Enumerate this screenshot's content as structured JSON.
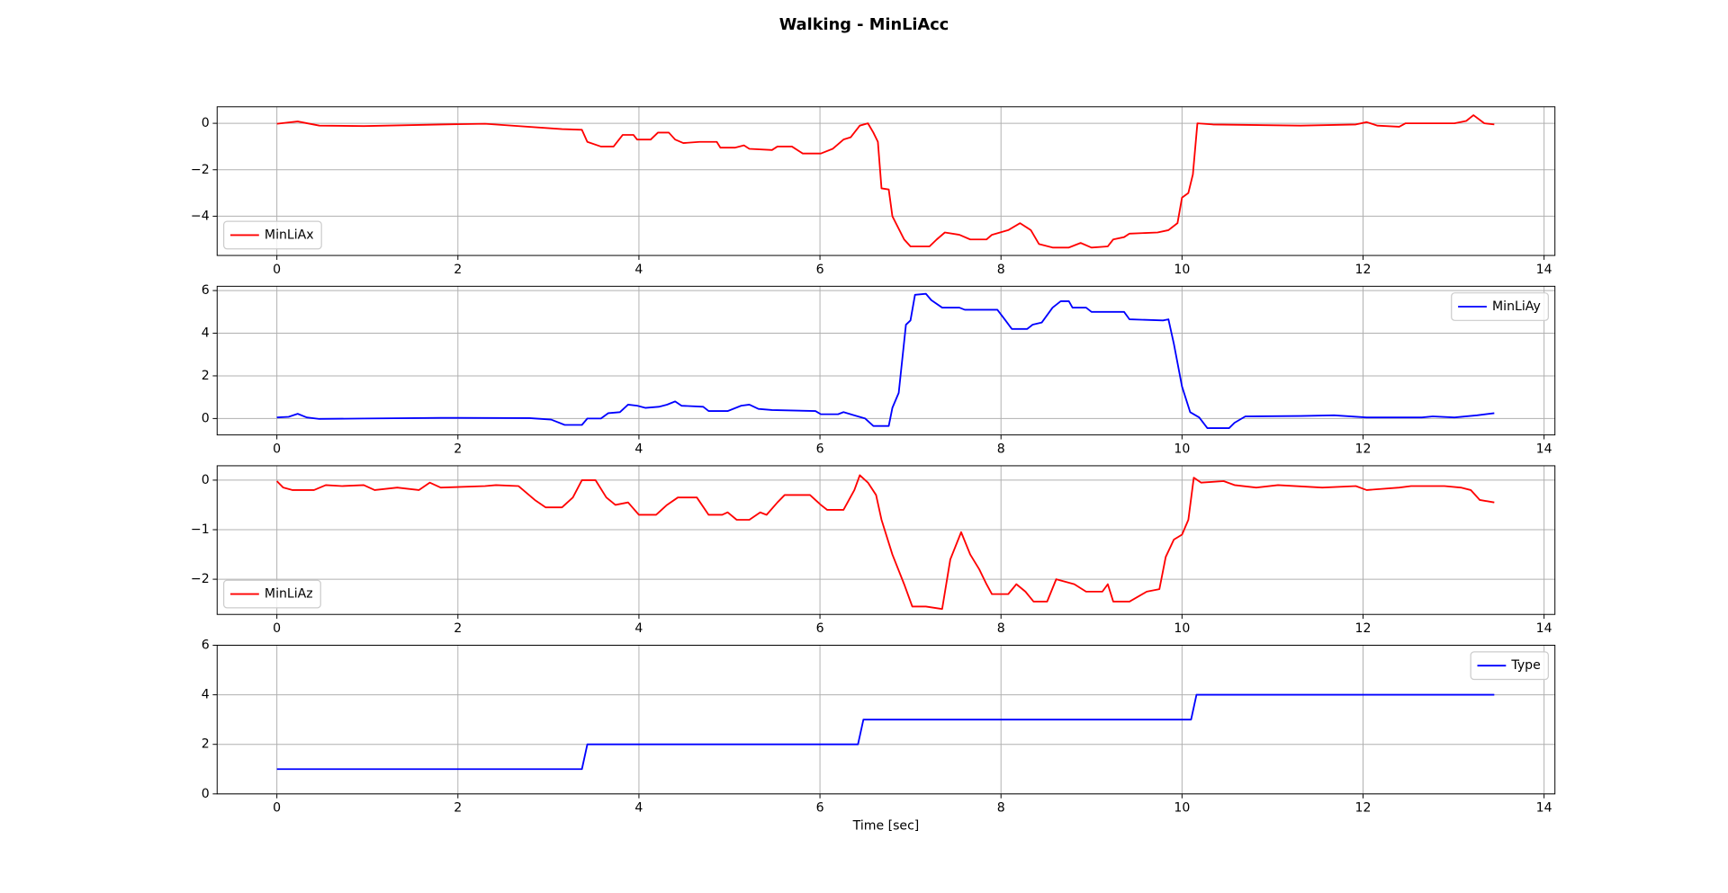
{
  "title": "Walking - MinLiAcc",
  "chart_data": [
    {
      "type": "line",
      "legend": "lower left",
      "grid": true,
      "xlim": [
        -0.66,
        14.12
      ],
      "ylim": [
        -5.69,
        0.71
      ],
      "xticks": [
        0,
        2,
        4,
        6,
        8,
        10,
        12,
        14
      ],
      "yticks": [
        {
          "value": -4,
          "label": "−4"
        },
        {
          "value": -2,
          "label": "−2"
        },
        0
      ],
      "x": [
        0,
        0.23,
        0.47,
        0.96,
        1.81,
        2.3,
        3.15,
        3.37,
        3.43,
        3.58,
        3.72,
        3.82,
        3.94,
        3.98,
        4.13,
        4.21,
        4.33,
        4.4,
        4.49,
        4.67,
        4.86,
        4.9,
        5.06,
        5.16,
        5.22,
        5.47,
        5.53,
        5.69,
        5.81,
        6.01,
        6.14,
        6.26,
        6.34,
        6.44,
        6.53,
        6.59,
        6.64,
        6.68,
        6.76,
        6.8,
        6.93,
        7.0,
        7.21,
        7.29,
        7.38,
        7.54,
        7.66,
        7.84,
        7.9,
        8.08,
        8.21,
        8.33,
        8.42,
        8.57,
        8.75,
        8.88,
        9.0,
        9.18,
        9.24,
        9.36,
        9.42,
        9.73,
        9.85,
        9.95,
        10.0,
        10.07,
        10.12,
        10.17,
        10.34,
        11.31,
        11.92,
        12.04,
        12.16,
        12.4,
        12.47,
        13.01,
        13.14,
        13.22,
        13.34,
        13.45
      ],
      "series": [
        {
          "name": "MinLiAx",
          "color": "#ff0000",
          "values": [
            -0.02,
            0.08,
            -0.1,
            -0.12,
            -0.05,
            -0.02,
            -0.25,
            -0.28,
            -0.8,
            -1.0,
            -1.0,
            -0.5,
            -0.5,
            -0.7,
            -0.7,
            -0.4,
            -0.4,
            -0.7,
            -0.85,
            -0.8,
            -0.8,
            -1.05,
            -1.05,
            -0.95,
            -1.1,
            -1.15,
            -1.0,
            -1.0,
            -1.3,
            -1.3,
            -1.1,
            -0.7,
            -0.6,
            -0.1,
            0,
            -0.4,
            -0.8,
            -2.8,
            -2.85,
            -4.0,
            -5.0,
            -5.3,
            -5.3,
            -5.0,
            -4.7,
            -4.8,
            -5.0,
            -5.0,
            -4.8,
            -4.6,
            -4.3,
            -4.6,
            -5.2,
            -5.35,
            -5.35,
            -5.15,
            -5.35,
            -5.3,
            -5.0,
            -4.9,
            -4.75,
            -4.7,
            -4.6,
            -4.3,
            -3.2,
            -3.0,
            -2.2,
            0,
            -0.05,
            -0.1,
            -0.05,
            0.05,
            -0.1,
            -0.15,
            0,
            0,
            0.1,
            0.35,
            0,
            -0.05
          ]
        }
      ]
    },
    {
      "type": "line",
      "legend": "upper right",
      "grid": true,
      "xlim": [
        -0.66,
        14.12
      ],
      "ylim": [
        -0.77,
        6.2
      ],
      "xticks": [
        0,
        2,
        4,
        6,
        8,
        10,
        12,
        14
      ],
      "yticks": [
        0,
        2,
        4,
        6
      ],
      "x": [
        0,
        0.13,
        0.23,
        0.33,
        0.47,
        0.96,
        1.81,
        2.79,
        3.03,
        3.18,
        3.37,
        3.43,
        3.58,
        3.66,
        3.79,
        3.88,
        3.98,
        4.07,
        4.22,
        4.31,
        4.4,
        4.47,
        4.71,
        4.77,
        4.98,
        5.13,
        5.22,
        5.32,
        5.47,
        5.95,
        6.01,
        6.2,
        6.26,
        6.38,
        6.5,
        6.59,
        6.76,
        6.8,
        6.87,
        6.9,
        6.95,
        7.0,
        7.05,
        7.17,
        7.23,
        7.35,
        7.54,
        7.6,
        7.96,
        8.05,
        8.12,
        8.29,
        8.35,
        8.45,
        8.57,
        8.66,
        8.75,
        8.79,
        8.94,
        9.0,
        9.36,
        9.42,
        9.79,
        9.85,
        9.91,
        10.0,
        10.09,
        10.19,
        10.28,
        10.52,
        10.58,
        10.7,
        11.31,
        11.68,
        12.04,
        12.65,
        12.77,
        13.01,
        13.26,
        13.45
      ],
      "series": [
        {
          "name": "MinLiAy",
          "color": "#0000ff",
          "values": [
            0.05,
            0.08,
            0.22,
            0.05,
            -0.02,
            0,
            0.03,
            0.02,
            -0.05,
            -0.3,
            -0.3,
            0,
            0,
            0.25,
            0.3,
            0.65,
            0.6,
            0.5,
            0.55,
            0.65,
            0.8,
            0.6,
            0.55,
            0.35,
            0.35,
            0.6,
            0.65,
            0.45,
            0.4,
            0.35,
            0.2,
            0.2,
            0.3,
            0.15,
            0,
            -0.35,
            -0.35,
            0.5,
            1.2,
            2.4,
            4.4,
            4.6,
            5.8,
            5.85,
            5.55,
            5.2,
            5.2,
            5.1,
            5.1,
            4.6,
            4.2,
            4.2,
            4.4,
            4.5,
            5.2,
            5.5,
            5.5,
            5.2,
            5.2,
            5.0,
            5.0,
            4.65,
            4.6,
            4.65,
            3.5,
            1.5,
            0.3,
            0.05,
            -0.45,
            -0.45,
            -0.2,
            0.1,
            0.12,
            0.15,
            0.05,
            0.05,
            0.1,
            0.05,
            0.15,
            0.25
          ]
        }
      ]
    },
    {
      "type": "line",
      "legend": "lower left",
      "grid": true,
      "xlim": [
        -0.66,
        14.12
      ],
      "ylim": [
        -2.71,
        0.29
      ],
      "xticks": [
        0,
        2,
        4,
        6,
        8,
        10,
        12,
        14
      ],
      "yticks": [
        {
          "value": -2,
          "label": "−2"
        },
        {
          "value": -1,
          "label": "−1"
        },
        0
      ],
      "x": [
        0,
        0.07,
        0.17,
        0.41,
        0.54,
        0.72,
        0.96,
        1.08,
        1.33,
        1.57,
        1.69,
        1.81,
        2.3,
        2.42,
        2.67,
        2.85,
        2.97,
        3.15,
        3.27,
        3.37,
        3.52,
        3.64,
        3.74,
        3.88,
        4.0,
        4.19,
        4.31,
        4.43,
        4.64,
        4.77,
        4.92,
        4.98,
        5.08,
        5.22,
        5.34,
        5.41,
        5.53,
        5.61,
        5.89,
        6.01,
        6.08,
        6.26,
        6.38,
        6.44,
        6.53,
        6.62,
        6.68,
        6.8,
        6.93,
        7.02,
        7.17,
        7.35,
        7.44,
        7.56,
        7.66,
        7.76,
        7.84,
        7.9,
        8.08,
        8.17,
        8.27,
        8.36,
        8.51,
        8.61,
        8.81,
        8.94,
        9.12,
        9.18,
        9.24,
        9.42,
        9.61,
        9.75,
        9.82,
        9.91,
        10.0,
        10.07,
        10.13,
        10.21,
        10.46,
        10.58,
        10.82,
        11.06,
        11.55,
        11.92,
        12.04,
        12.4,
        12.53,
        12.9,
        13.08,
        13.19,
        13.29,
        13.45
      ],
      "series": [
        {
          "name": "MinLiAz",
          "color": "#ff0000",
          "values": [
            -0.02,
            -0.15,
            -0.2,
            -0.2,
            -0.1,
            -0.12,
            -0.1,
            -0.2,
            -0.15,
            -0.2,
            -0.05,
            -0.15,
            -0.12,
            -0.1,
            -0.12,
            -0.4,
            -0.55,
            -0.55,
            -0.35,
            0,
            0,
            -0.35,
            -0.5,
            -0.45,
            -0.7,
            -0.7,
            -0.5,
            -0.35,
            -0.35,
            -0.7,
            -0.7,
            -0.65,
            -0.8,
            -0.8,
            -0.65,
            -0.7,
            -0.45,
            -0.3,
            -0.3,
            -0.5,
            -0.6,
            -0.6,
            -0.2,
            0.1,
            -0.05,
            -0.3,
            -0.8,
            -1.5,
            -2.1,
            -2.55,
            -2.55,
            -2.6,
            -1.6,
            -1.05,
            -1.5,
            -1.8,
            -2.1,
            -2.3,
            -2.3,
            -2.1,
            -2.25,
            -2.45,
            -2.45,
            -2.0,
            -2.1,
            -2.25,
            -2.25,
            -2.1,
            -2.45,
            -2.45,
            -2.25,
            -2.2,
            -1.55,
            -1.2,
            -1.1,
            -0.8,
            0.05,
            -0.05,
            -0.02,
            -0.1,
            -0.15,
            -0.1,
            -0.15,
            -0.12,
            -0.2,
            -0.15,
            -0.12,
            -0.12,
            -0.15,
            -0.2,
            -0.4,
            -0.45
          ]
        }
      ]
    },
    {
      "type": "line",
      "legend": "upper right",
      "grid": true,
      "xlabel": "Time [sec]",
      "xlim": [
        -0.66,
        14.12
      ],
      "ylim": [
        0,
        6
      ],
      "xticks": [
        0,
        2,
        4,
        6,
        8,
        10,
        12,
        14
      ],
      "yticks": [
        0,
        2,
        4,
        6
      ],
      "x": [
        0,
        3.37,
        3.43,
        6.42,
        6.48,
        10.1,
        10.16,
        13.45
      ],
      "series": [
        {
          "name": "Type",
          "color": "#0000ff",
          "values": [
            1,
            1,
            2,
            2,
            3,
            3,
            4,
            4
          ]
        }
      ]
    }
  ]
}
